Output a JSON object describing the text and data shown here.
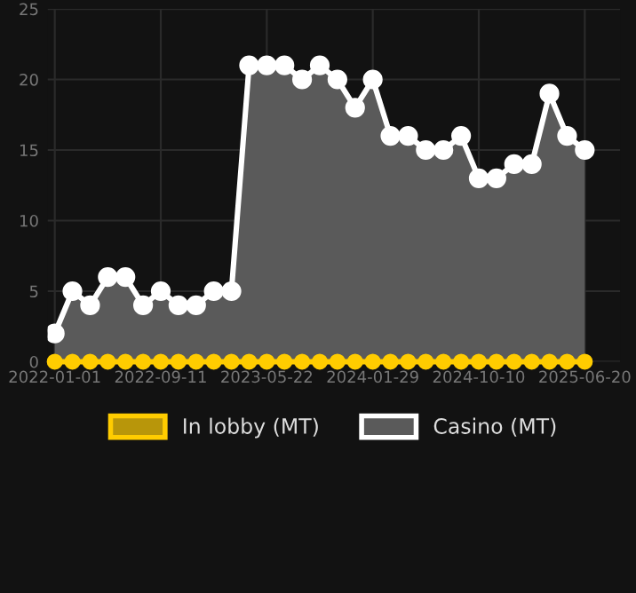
{
  "chart_data": {
    "type": "area",
    "categories": [
      "2022-01-01",
      null,
      null,
      null,
      null,
      null,
      "2022-09-11",
      null,
      null,
      null,
      null,
      null,
      "2023-05-22",
      null,
      null,
      null,
      null,
      null,
      "2024-01-29",
      null,
      null,
      null,
      null,
      null,
      "2024-10-10",
      null,
      null,
      null,
      null,
      null,
      "2025-06-20"
    ],
    "series": [
      {
        "name": "In lobby (MT)",
        "type": "line",
        "color": "#ffcc00",
        "values": [
          0,
          0,
          0,
          0,
          0,
          0,
          0,
          0,
          0,
          0,
          0,
          0,
          0,
          0,
          0,
          0,
          0,
          0,
          0,
          0,
          0,
          0,
          0,
          0,
          0,
          0,
          0,
          0,
          0,
          0,
          0
        ]
      },
      {
        "name": "Casino (MT)",
        "color": "#ffffff",
        "values": [
          2,
          5,
          4,
          6,
          6,
          4,
          5,
          4,
          4,
          5,
          5,
          21,
          21,
          21,
          20,
          21,
          20,
          18,
          20,
          16,
          16,
          15,
          15,
          16,
          13,
          13,
          14,
          14,
          19,
          16,
          15
        ]
      }
    ],
    "ylim": [
      0,
      25
    ],
    "yticks": [
      0,
      5,
      10,
      15,
      20,
      25
    ],
    "grid": true,
    "legend": "bottom",
    "marker": "circle"
  }
}
